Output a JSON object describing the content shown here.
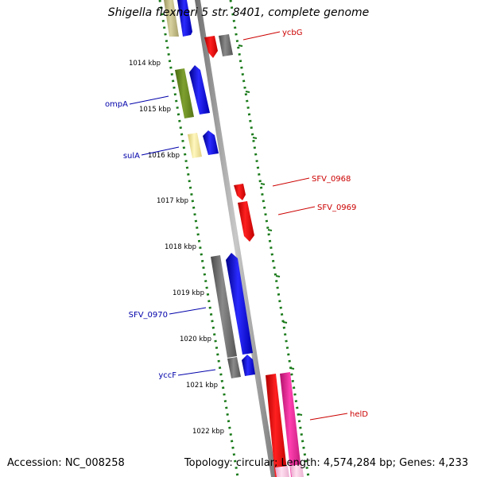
{
  "title": "Shigella flexneri 5 str. 8401, complete genome",
  "footer": {
    "accession": "Accession: NC_008258",
    "topology": "Topology: circular; Length: 4,574,284 bp; Genes: 4,233"
  },
  "colors": {
    "forward_label": "#cc0000",
    "reverse_label": "#0000aa",
    "tick_green": "#1a7a1a",
    "backbone": "#8c8c8c"
  },
  "scale": {
    "unit": "kbp",
    "ticks": [
      "1014 kbp",
      "1015 kbp",
      "1016 kbp",
      "1017 kbp",
      "1018 kbp",
      "1019 kbp",
      "1020 kbp",
      "1021 kbp",
      "1022 kbp"
    ]
  },
  "gene_labels": [
    {
      "name": "ycbG",
      "strand": "forward"
    },
    {
      "name": "ompA",
      "strand": "reverse"
    },
    {
      "name": "sulA",
      "strand": "reverse"
    },
    {
      "name": "SFV_0968",
      "strand": "forward"
    },
    {
      "name": "SFV_0969",
      "strand": "forward"
    },
    {
      "name": "SFV_0970",
      "strand": "reverse"
    },
    {
      "name": "yccF",
      "strand": "reverse"
    },
    {
      "name": "helD",
      "strand": "forward"
    }
  ]
}
